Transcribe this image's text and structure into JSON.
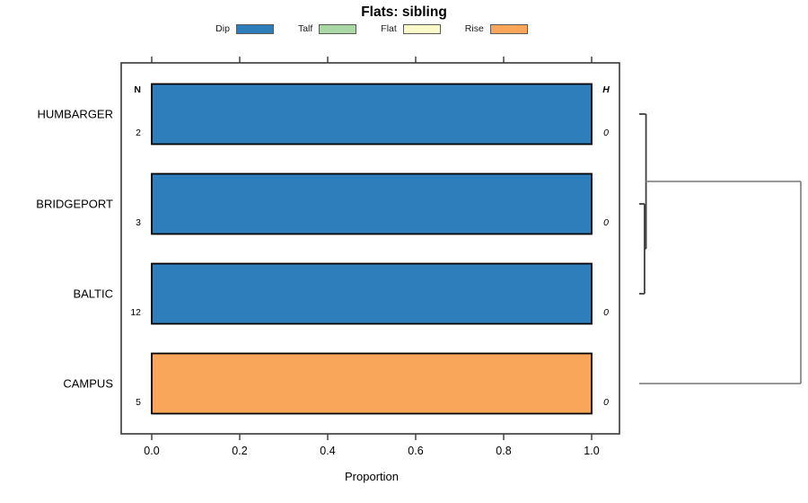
{
  "title": "Flats: sibling",
  "legend": {
    "items": [
      {
        "label": "Dip",
        "color": "#2E7EBC"
      },
      {
        "label": "Talf",
        "color": "#A9D8A4"
      },
      {
        "label": "Flat",
        "color": "#FAFBC8"
      },
      {
        "label": "Rise",
        "color": "#F9A65A"
      }
    ]
  },
  "chart_data": {
    "type": "bar",
    "orientation": "horizontal",
    "title": "Flats: sibling",
    "xlabel": "Proportion",
    "xlim": [
      0,
      1
    ],
    "xticks": [
      "0.0",
      "0.2",
      "0.4",
      "0.6",
      "0.8",
      "1.0"
    ],
    "grid": false,
    "legend_position": "top",
    "left_header": "N",
    "right_header": "H",
    "categories": [
      "HUMBARGER",
      "BRIDGEPORT",
      "BALTIC",
      "CAMPUS"
    ],
    "rows": [
      {
        "category": "HUMBARGER",
        "n": "2",
        "h": "0",
        "segments": [
          {
            "label": "Dip",
            "value": 1.0,
            "color": "#2E7EBC"
          }
        ]
      },
      {
        "category": "BRIDGEPORT",
        "n": "3",
        "h": "0",
        "segments": [
          {
            "label": "Dip",
            "value": 1.0,
            "color": "#2E7EBC"
          }
        ]
      },
      {
        "category": "BALTIC",
        "n": "12",
        "h": "0",
        "segments": [
          {
            "label": "Dip",
            "value": 1.0,
            "color": "#2E7EBC"
          }
        ]
      },
      {
        "category": "CAMPUS",
        "n": "5",
        "h": "0",
        "segments": [
          {
            "label": "Rise",
            "value": 1.0,
            "color": "#F9A65A"
          }
        ]
      }
    ],
    "dendrogram": {
      "position": "right",
      "merges": [
        {
          "children": [
            "BRIDGEPORT",
            "BALTIC"
          ],
          "height": 0.033
        },
        {
          "children": [
            "HUMBARGER",
            "merge0"
          ],
          "height": 0.042
        },
        {
          "children": [
            "merge1",
            "CAMPUS"
          ],
          "height": 1.0
        }
      ]
    }
  }
}
